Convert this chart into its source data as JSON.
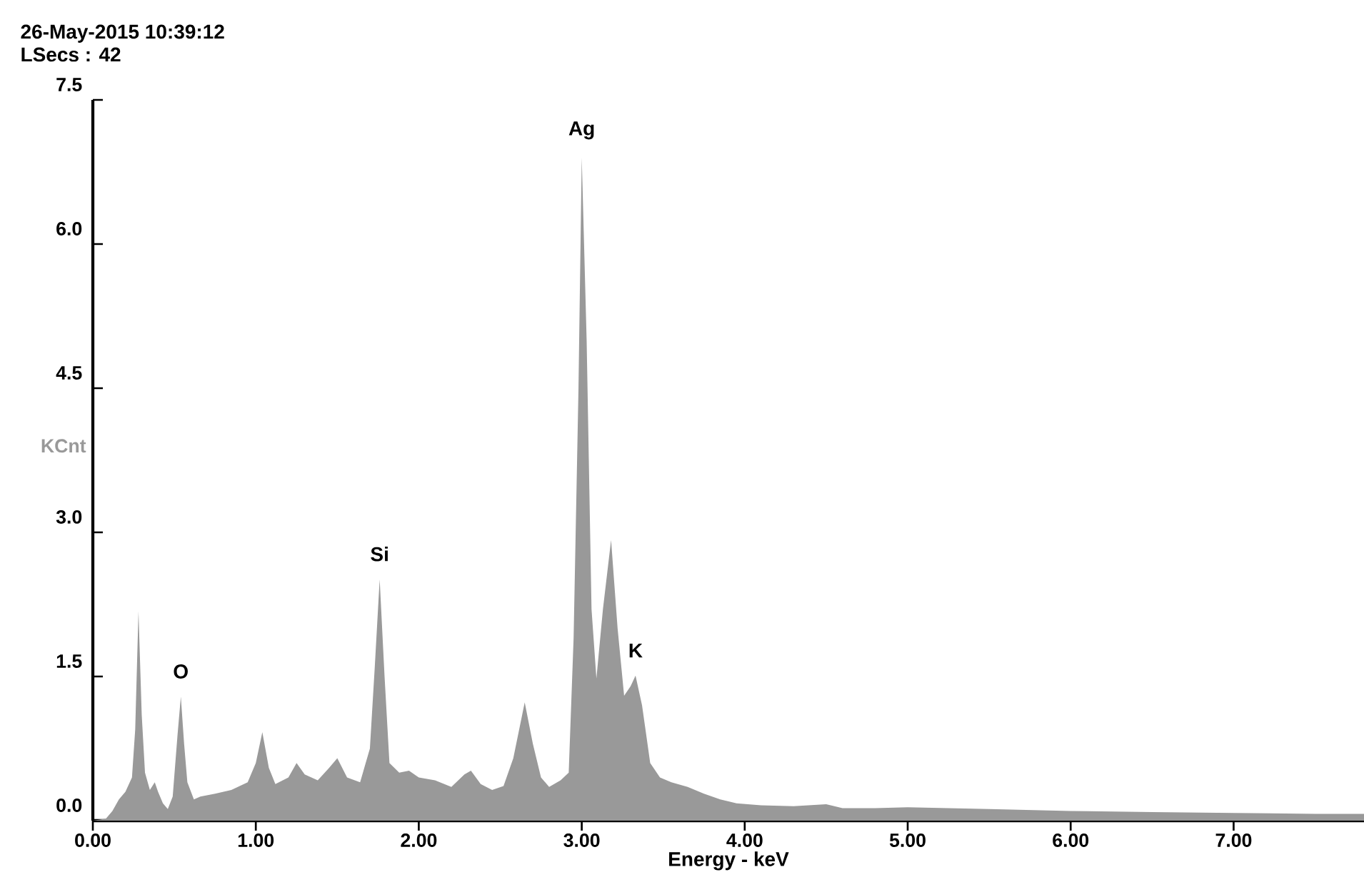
{
  "chart_data": {
    "type": "area",
    "title": "26-May-2015 10:39:12",
    "subtitle": "LSecs : 42",
    "xlabel": "Energy - keV",
    "ylabel": "KCnt",
    "xlim": [
      0,
      7.8
    ],
    "ylim": [
      0,
      7.5
    ],
    "xticks": [
      {
        "value": 0,
        "label": "0.00"
      },
      {
        "value": 1,
        "label": "1.00"
      },
      {
        "value": 2,
        "label": "2.00"
      },
      {
        "value": 3,
        "label": "3.00"
      },
      {
        "value": 4,
        "label": "4.00"
      },
      {
        "value": 5,
        "label": "5.00"
      },
      {
        "value": 6,
        "label": "6.00"
      },
      {
        "value": 7,
        "label": "7.00"
      }
    ],
    "yticks": [
      {
        "value": 0,
        "label": "0.0"
      },
      {
        "value": 1.5,
        "label": "1.5"
      },
      {
        "value": 3,
        "label": "3.0"
      },
      {
        "value": 4.5,
        "label": "4.5"
      },
      {
        "value": 6,
        "label": "6.0"
      },
      {
        "value": 7.5,
        "label": "7.5"
      }
    ],
    "color": "#999999",
    "x": [
      0.0,
      0.08,
      0.12,
      0.16,
      0.2,
      0.24,
      0.26,
      0.28,
      0.3,
      0.32,
      0.35,
      0.38,
      0.4,
      0.43,
      0.46,
      0.49,
      0.52,
      0.54,
      0.56,
      0.58,
      0.62,
      0.66,
      0.75,
      0.85,
      0.95,
      1.0,
      1.04,
      1.08,
      1.12,
      1.2,
      1.25,
      1.3,
      1.38,
      1.45,
      1.5,
      1.56,
      1.64,
      1.7,
      1.73,
      1.76,
      1.79,
      1.82,
      1.88,
      1.94,
      2.0,
      2.1,
      2.2,
      2.28,
      2.32,
      2.38,
      2.45,
      2.52,
      2.58,
      2.65,
      2.7,
      2.75,
      2.8,
      2.87,
      2.92,
      2.95,
      2.98,
      3.0,
      3.03,
      3.06,
      3.09,
      3.13,
      3.18,
      3.22,
      3.26,
      3.3,
      3.33,
      3.37,
      3.42,
      3.48,
      3.55,
      3.65,
      3.75,
      3.85,
      3.95,
      4.1,
      4.3,
      4.5,
      4.6,
      4.8,
      5.0,
      5.5,
      6.0,
      6.5,
      7.0,
      7.5,
      7.8
    ],
    "values": [
      0,
      0.02,
      0.1,
      0.22,
      0.3,
      0.45,
      0.95,
      2.18,
      1.1,
      0.5,
      0.32,
      0.4,
      0.3,
      0.18,
      0.12,
      0.25,
      0.9,
      1.29,
      0.8,
      0.4,
      0.22,
      0.25,
      0.28,
      0.32,
      0.4,
      0.6,
      0.92,
      0.55,
      0.38,
      0.45,
      0.6,
      0.48,
      0.42,
      0.55,
      0.65,
      0.45,
      0.4,
      0.75,
      1.6,
      2.51,
      1.5,
      0.6,
      0.5,
      0.52,
      0.45,
      0.42,
      0.35,
      0.48,
      0.52,
      0.38,
      0.32,
      0.36,
      0.65,
      1.23,
      0.8,
      0.45,
      0.35,
      0.42,
      0.5,
      1.9,
      4.5,
      6.9,
      5.0,
      2.2,
      1.48,
      2.2,
      2.92,
      2.0,
      1.3,
      1.4,
      1.51,
      1.2,
      0.6,
      0.45,
      0.4,
      0.35,
      0.28,
      0.22,
      0.18,
      0.16,
      0.15,
      0.17,
      0.13,
      0.13,
      0.14,
      0.12,
      0.1,
      0.09,
      0.08,
      0.07,
      0.07
    ],
    "annotations": [
      {
        "text": "O",
        "x": 0.54,
        "y": 1.29
      },
      {
        "text": "Si",
        "x": 1.76,
        "y": 2.51
      },
      {
        "text": "Ag",
        "x": 3.0,
        "y": 6.9
      },
      {
        "text": "K",
        "x": 3.33,
        "y": 1.51
      }
    ]
  }
}
